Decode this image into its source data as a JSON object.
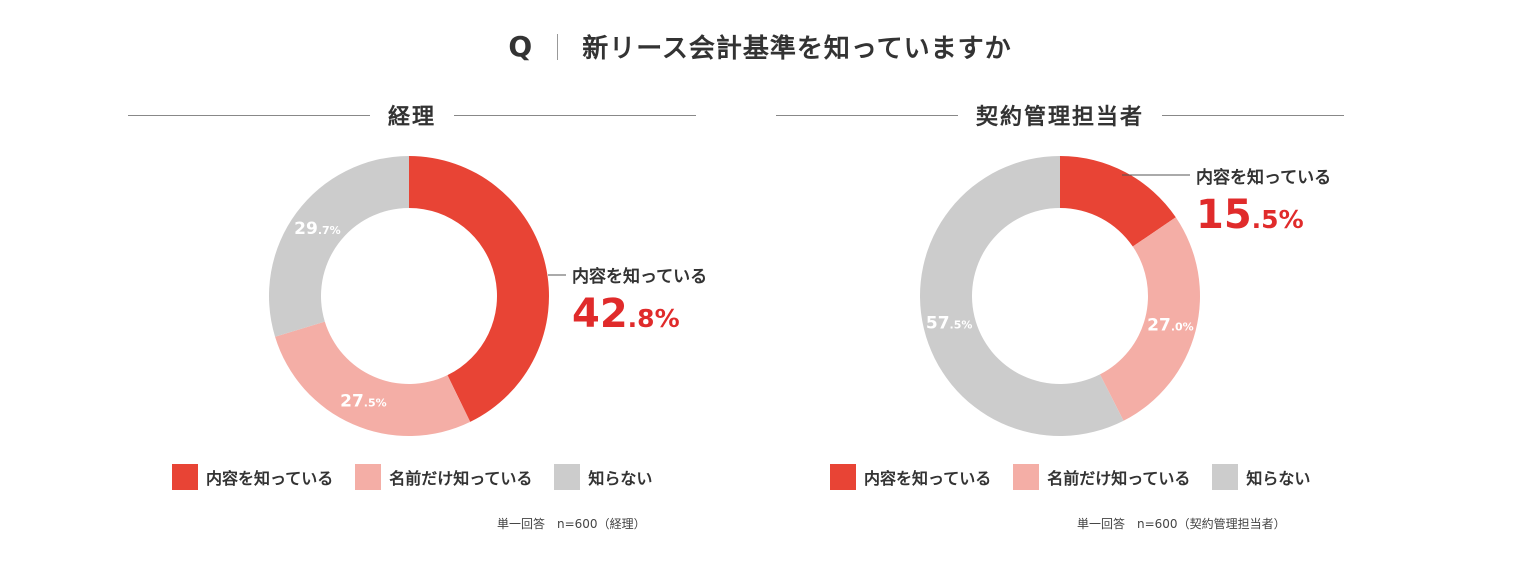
{
  "title": {
    "q": "Q",
    "text": "新リース会計基準を知っていますか"
  },
  "colors": {
    "known": "#e84435",
    "name_only": "#f4aea6",
    "unknown": "#cccccc",
    "accent": "#e02b2b"
  },
  "legend": [
    "内容を知っている",
    "名前だけ知っている",
    "知らない"
  ],
  "chart_data": [
    {
      "type": "pie",
      "title": "経理",
      "categories": [
        "内容を知っている",
        "名前だけ知っている",
        "知らない"
      ],
      "values": [
        42.8,
        27.5,
        29.7
      ],
      "slice_labels": [
        {
          "int": "",
          "dec": ""
        },
        {
          "int": "27",
          "dec": ".5%"
        },
        {
          "int": "29",
          "dec": ".7%"
        }
      ],
      "callout": {
        "label": "内容を知っている",
        "int": "42",
        "dec": ".8%"
      },
      "note": "単一回答　n=600（経理）"
    },
    {
      "type": "pie",
      "title": "契約管理担当者",
      "categories": [
        "内容を知っている",
        "名前だけ知っている",
        "知らない"
      ],
      "values": [
        15.5,
        27.0,
        57.5
      ],
      "slice_labels": [
        {
          "int": "",
          "dec": ""
        },
        {
          "int": "27",
          "dec": ".0%"
        },
        {
          "int": "57",
          "dec": ".5%"
        }
      ],
      "callout": {
        "label": "内容を知っている",
        "int": "15",
        "dec": ".5%"
      },
      "note": "単一回答　n=600（契約管理担当者）"
    }
  ]
}
